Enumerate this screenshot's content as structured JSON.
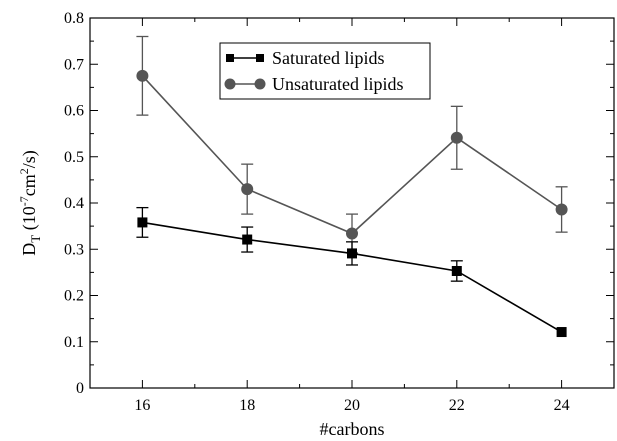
{
  "chart_data": {
    "type": "line",
    "xlabel": "#carbons",
    "ylabel": {
      "main": "D",
      "subscript": "T",
      "units_prefix": " (10",
      "units_exp1": "-7",
      "units_mid": "cm",
      "units_exp2": "2",
      "units_suffix": "/s)"
    },
    "xlim": [
      15,
      25
    ],
    "ylim": [
      0,
      0.8
    ],
    "x_ticks": [
      "16",
      "18",
      "20",
      "22",
      "24"
    ],
    "y_ticks": [
      "0",
      "0.1",
      "0.2",
      "0.3",
      "0.4",
      "0.5",
      "0.6",
      "0.7",
      "0.8"
    ],
    "legend_position": "top-center",
    "series": [
      {
        "name": "Saturated lipids",
        "marker": "square",
        "color": "#000000",
        "x": [
          16,
          18,
          20,
          22,
          24
        ],
        "y": [
          0.358,
          0.321,
          0.291,
          0.253,
          0.121
        ],
        "err": [
          0.032,
          0.027,
          0.025,
          0.022,
          0.0
        ]
      },
      {
        "name": "Unsaturated lipids",
        "marker": "circle",
        "color": "#555555",
        "x": [
          16,
          18,
          20,
          22,
          24
        ],
        "y": [
          0.675,
          0.43,
          0.334,
          0.541,
          0.386
        ],
        "err": [
          0.085,
          0.054,
          0.042,
          0.068,
          0.049
        ]
      }
    ]
  }
}
